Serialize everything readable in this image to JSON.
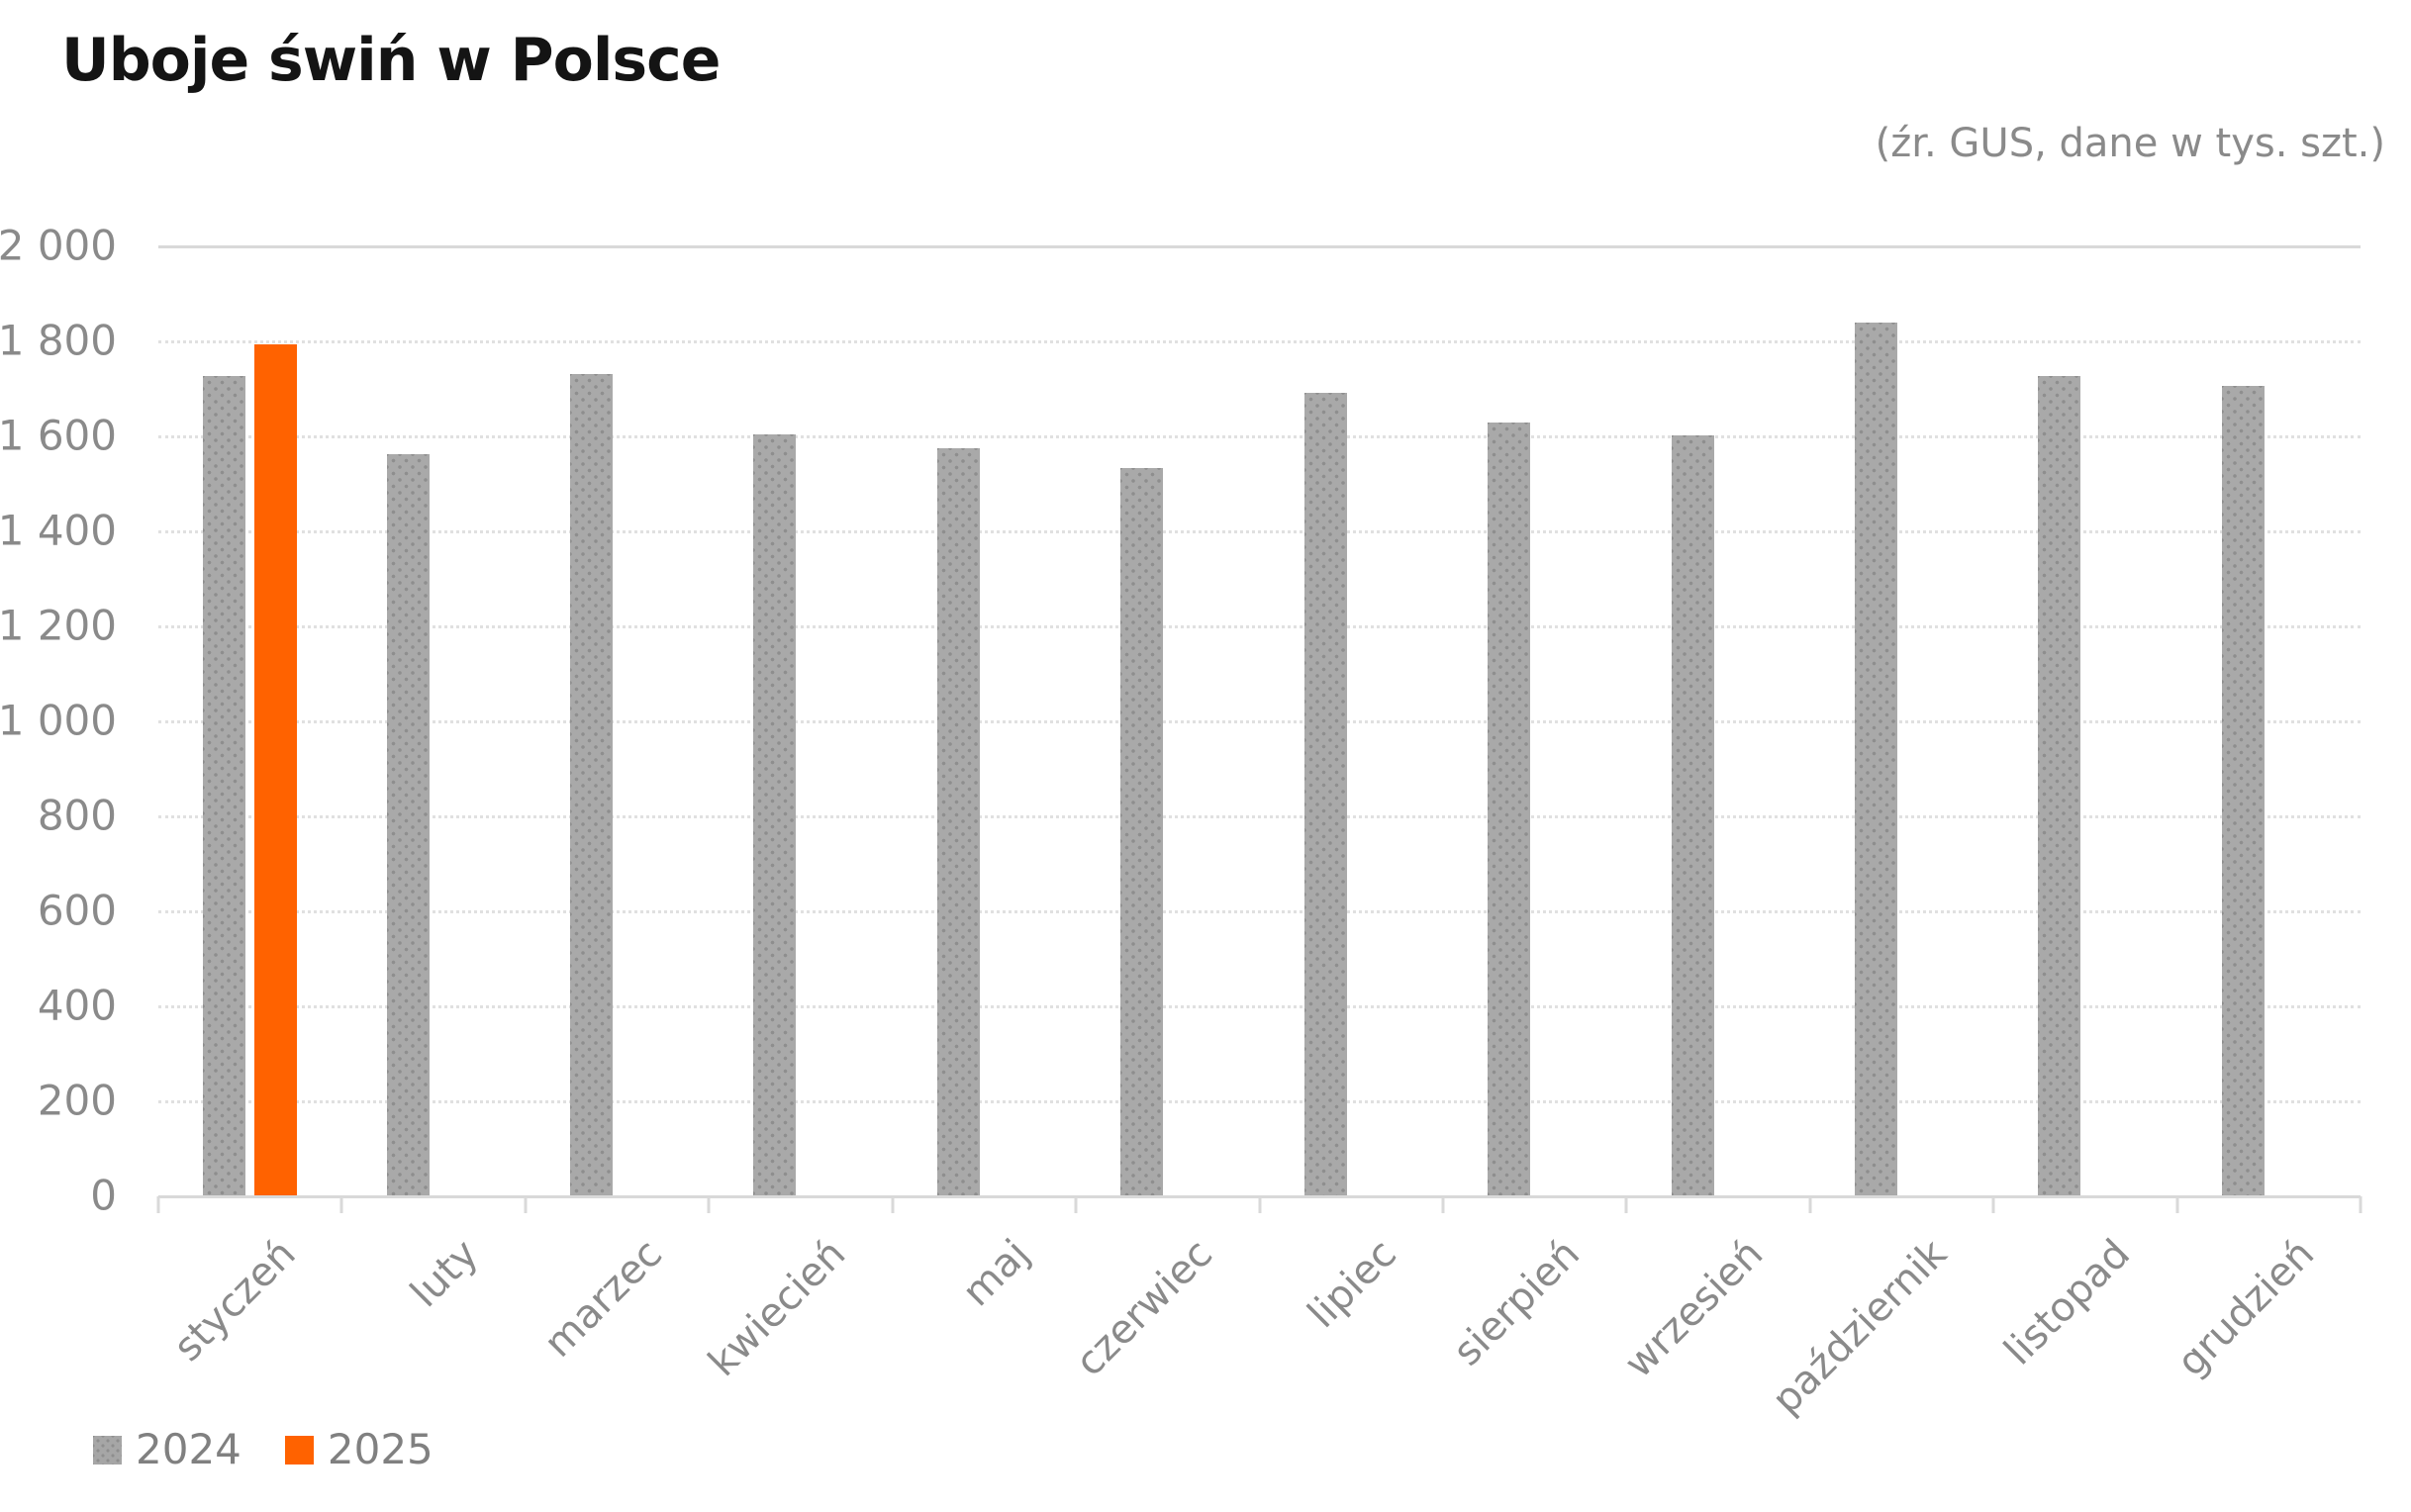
{
  "chart_data": {
    "type": "bar",
    "title": "Uboje świń w Polsce",
    "subtitle": "(źr. GUS, dane w tys. szt.)",
    "units": "tys. szt.",
    "categories": [
      "styczeń",
      "luty",
      "marzec",
      "kwiecień",
      "maj",
      "czerwiec",
      "lipiec",
      "sierpień",
      "wrzesień",
      "październik",
      "listopad",
      "grudzień"
    ],
    "series": [
      {
        "name": "2024",
        "color": "#a6a6a6",
        "values": [
          1726,
          1560,
          1730,
          1602,
          1573,
          1531,
          1690,
          1628,
          1600,
          1837,
          1726,
          1705
        ]
      },
      {
        "name": "2025",
        "color": "#ff6200",
        "values": [
          1791,
          null,
          null,
          null,
          null,
          null,
          null,
          null,
          null,
          null,
          null,
          null
        ]
      }
    ],
    "ylim": [
      0,
      2000
    ],
    "ytick_step": 200,
    "yticks": [
      {
        "value": 0,
        "label": "0"
      },
      {
        "value": 200,
        "label": "200"
      },
      {
        "value": 400,
        "label": "400"
      },
      {
        "value": 600,
        "label": "600"
      },
      {
        "value": 800,
        "label": "800"
      },
      {
        "value": 1000,
        "label": "1 000"
      },
      {
        "value": 1200,
        "label": "1 200"
      },
      {
        "value": 1400,
        "label": "1 400"
      },
      {
        "value": 1600,
        "label": "1 600"
      },
      {
        "value": 1800,
        "label": "1 800"
      },
      {
        "value": 2000,
        "label": "2 000"
      }
    ],
    "grid": true,
    "legend_position": "bottom-left"
  }
}
